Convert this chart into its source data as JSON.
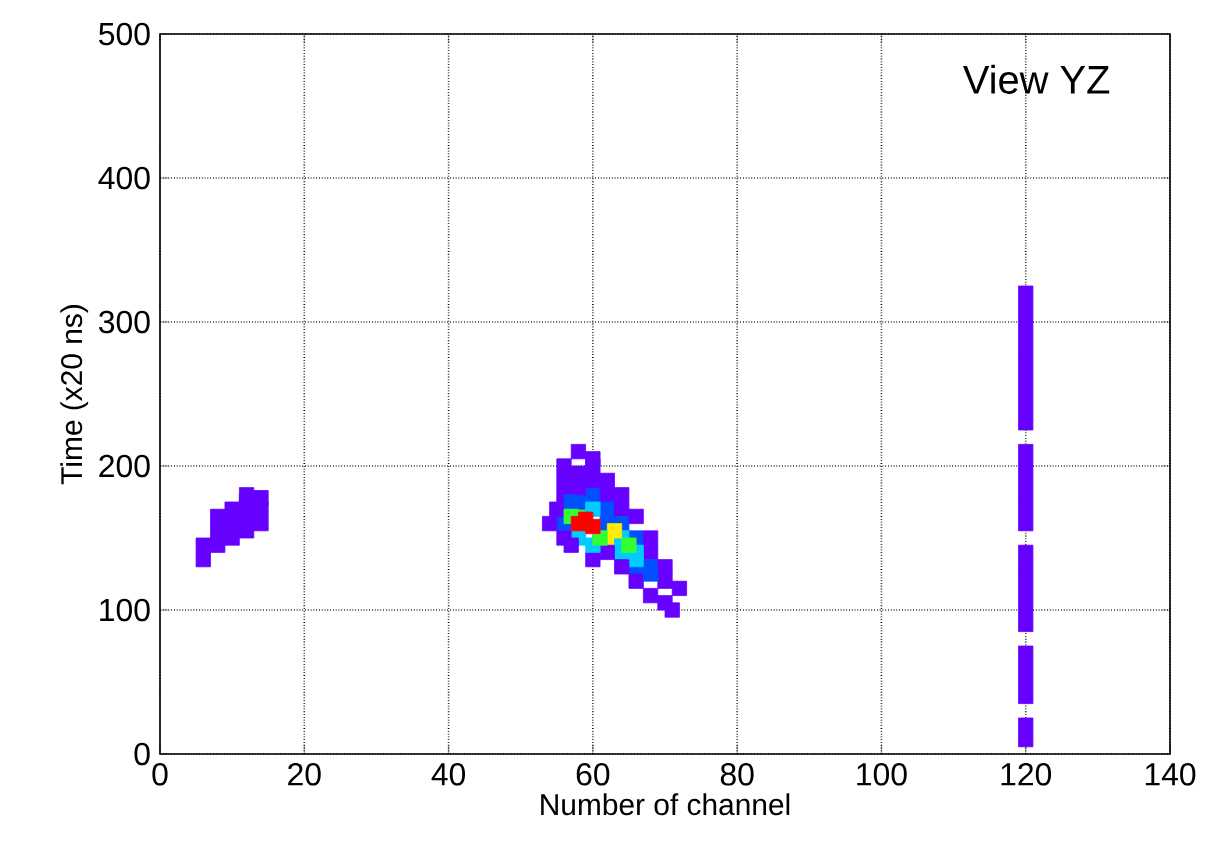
{
  "chart_data": {
    "type": "scatter",
    "xlabel": "Number of channel",
    "ylabel": "Time (x20 ns)",
    "annotations": [
      "View YZ"
    ],
    "xlim": [
      0,
      140
    ],
    "ylim": [
      0,
      500
    ],
    "xticks": [
      0,
      20,
      40,
      60,
      80,
      100,
      120,
      140
    ],
    "yticks": [
      0,
      100,
      200,
      300,
      400,
      500
    ],
    "grid": true,
    "marker": "square",
    "x": [
      56,
      56,
      58,
      58,
      58,
      60,
      60,
      62,
      62,
      64,
      64,
      66,
      66,
      68,
      68,
      70,
      58,
      56,
      60,
      62,
      64,
      66,
      6,
      6,
      8,
      8,
      8,
      10,
      10,
      10,
      12,
      12,
      12,
      12,
      14,
      14,
      14,
      56,
      58,
      60,
      62,
      55,
      54,
      56,
      64,
      66,
      68,
      70,
      72,
      70,
      68,
      66,
      64,
      62,
      60,
      57,
      71,
      60,
      58,
      57,
      62,
      64,
      66,
      68,
      60,
      57,
      63,
      65,
      61,
      58,
      60,
      59,
      120,
      120,
      120,
      120,
      120,
      120,
      120,
      120,
      120,
      120,
      120,
      120,
      120,
      120,
      120,
      120,
      120,
      120,
      120,
      120,
      120,
      120,
      120,
      120,
      120,
      120,
      120,
      120
    ],
    "values": [
      160,
      190,
      170,
      175,
      195,
      200,
      180,
      180,
      170,
      170,
      160,
      150,
      130,
      140,
      130,
      120,
      150,
      180,
      170,
      150,
      140,
      135,
      135,
      145,
      145,
      155,
      165,
      150,
      160,
      170,
      155,
      165,
      175,
      180,
      160,
      170,
      178,
      200,
      210,
      205,
      190,
      170,
      160,
      150,
      180,
      165,
      150,
      130,
      115,
      105,
      110,
      120,
      130,
      140,
      135,
      145,
      100,
      190,
      185,
      175,
      160,
      150,
      140,
      125,
      145,
      165,
      155,
      145,
      150,
      160,
      158,
      163,
      10,
      20,
      40,
      50,
      60,
      70,
      90,
      100,
      110,
      120,
      130,
      140,
      160,
      170,
      180,
      190,
      200,
      210,
      230,
      240,
      250,
      260,
      270,
      280,
      290,
      300,
      310,
      320
    ],
    "colors": [
      "#0050ff",
      "#6600ff",
      "#33ff33",
      "#0050ff",
      "#6600ff",
      "#6600ff",
      "#0050ff",
      "#6600ff",
      "#0050ff",
      "#6600ff",
      "#0050ff",
      "#0050ff",
      "#0050ff",
      "#6600ff",
      "#0050ff",
      "#6600ff",
      "#00ccff",
      "#6600ff",
      "#00ccff",
      "#ffee00",
      "#00ccff",
      "#00ccff",
      "#6600ff",
      "#6600ff",
      "#6600ff",
      "#6600ff",
      "#6600ff",
      "#6600ff",
      "#6600ff",
      "#6600ff",
      "#6600ff",
      "#6600ff",
      "#6600ff",
      "#6600ff",
      "#6600ff",
      "#6600ff",
      "#6600ff",
      "#6600ff",
      "#6600ff",
      "#6600ff",
      "#6600ff",
      "#6600ff",
      "#6600ff",
      "#6600ff",
      "#6600ff",
      "#6600ff",
      "#6600ff",
      "#6600ff",
      "#6600ff",
      "#6600ff",
      "#6600ff",
      "#6600ff",
      "#6600ff",
      "#6600ff",
      "#6600ff",
      "#6600ff",
      "#6600ff",
      "#6600ff",
      "#6600ff",
      "#0050ff",
      "#0050ff",
      "#00ccff",
      "#00ccff",
      "#0050ff",
      "#00ccff",
      "#33ff33",
      "#ffee00",
      "#33ff33",
      "#33ff33",
      "#ff0000",
      "#ff0000",
      "#ff0000",
      "#6600ff",
      "#6600ff",
      "#6600ff",
      "#6600ff",
      "#6600ff",
      "#6600ff",
      "#6600ff",
      "#6600ff",
      "#6600ff",
      "#6600ff",
      "#6600ff",
      "#6600ff",
      "#6600ff",
      "#6600ff",
      "#6600ff",
      "#6600ff",
      "#6600ff",
      "#6600ff",
      "#6600ff",
      "#6600ff",
      "#6600ff",
      "#6600ff",
      "#6600ff",
      "#6600ff",
      "#6600ff",
      "#6600ff",
      "#6600ff",
      "#6600ff"
    ]
  }
}
